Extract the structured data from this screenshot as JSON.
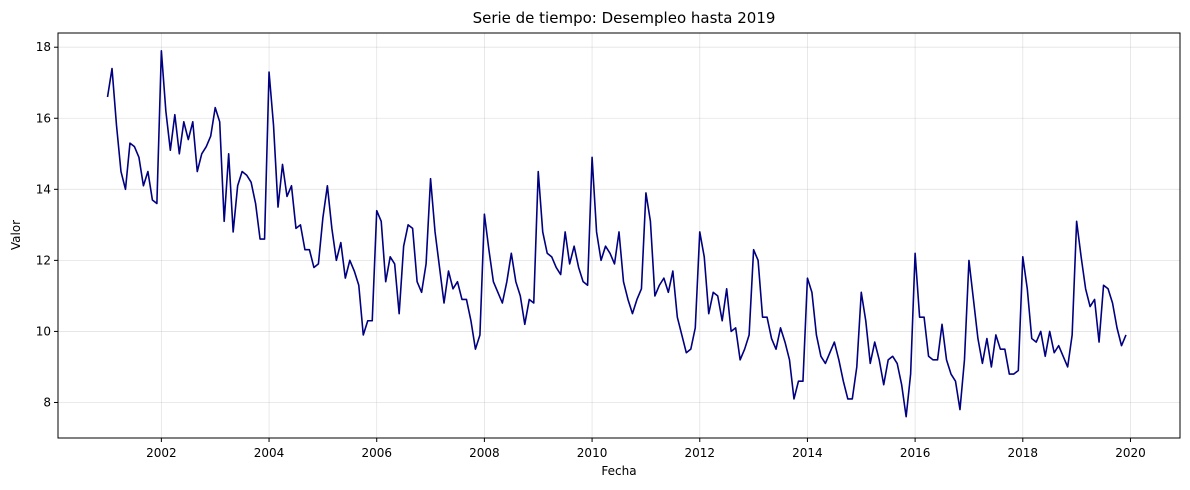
{
  "chart_data": {
    "type": "line",
    "title": "Serie de tiempo: Desempleo hasta 2019",
    "xlabel": "Fecha",
    "ylabel": "Valor",
    "xlim": [
      2000.08,
      2020.92
    ],
    "ylim": [
      7.0,
      18.4
    ],
    "x_ticks": [
      2002,
      2004,
      2006,
      2008,
      2010,
      2012,
      2014,
      2016,
      2018,
      2020
    ],
    "x_tick_labels": [
      "2002",
      "2004",
      "2006",
      "2008",
      "2010",
      "2012",
      "2014",
      "2016",
      "2018",
      "2020"
    ],
    "y_ticks": [
      8,
      10,
      12,
      14,
      16,
      18
    ],
    "y_tick_labels": [
      "8",
      "10",
      "12",
      "14",
      "16",
      "18"
    ],
    "grid": true,
    "series": [
      {
        "color": "#000080",
        "start": "2001-01",
        "frequency": "monthly",
        "x": [
          "2001-01",
          "2001-02",
          "2001-03",
          "2001-04",
          "2001-05",
          "2001-06",
          "2001-07",
          "2001-08",
          "2001-09",
          "2001-10",
          "2001-11",
          "2001-12",
          "2002-01",
          "2002-02",
          "2002-03",
          "2002-04",
          "2002-05",
          "2002-06",
          "2002-07",
          "2002-08",
          "2002-09",
          "2002-10",
          "2002-11",
          "2002-12",
          "2003-01",
          "2003-02",
          "2003-03",
          "2003-04",
          "2003-05",
          "2003-06",
          "2003-07",
          "2003-08",
          "2003-09",
          "2003-10",
          "2003-11",
          "2003-12",
          "2004-01",
          "2004-02",
          "2004-03",
          "2004-04",
          "2004-05",
          "2004-06",
          "2004-07",
          "2004-08",
          "2004-09",
          "2004-10",
          "2004-11",
          "2004-12",
          "2005-01",
          "2005-02",
          "2005-03",
          "2005-04",
          "2005-05",
          "2005-06",
          "2005-07",
          "2005-08",
          "2005-09",
          "2005-10",
          "2005-11",
          "2005-12",
          "2006-01",
          "2006-02",
          "2006-03",
          "2006-04",
          "2006-05",
          "2006-06",
          "2006-07",
          "2006-08",
          "2006-09",
          "2006-10",
          "2006-11",
          "2006-12",
          "2007-01",
          "2007-02",
          "2007-03",
          "2007-04",
          "2007-05",
          "2007-06",
          "2007-07",
          "2007-08",
          "2007-09",
          "2007-10",
          "2007-11",
          "2007-12",
          "2008-01",
          "2008-02",
          "2008-03",
          "2008-04",
          "2008-05",
          "2008-06",
          "2008-07",
          "2008-08",
          "2008-09",
          "2008-10",
          "2008-11",
          "2008-12",
          "2009-01",
          "2009-02",
          "2009-03",
          "2009-04",
          "2009-05",
          "2009-06",
          "2009-07",
          "2009-08",
          "2009-09",
          "2009-10",
          "2009-11",
          "2009-12",
          "2010-01",
          "2010-02",
          "2010-03",
          "2010-04",
          "2010-05",
          "2010-06",
          "2010-07",
          "2010-08",
          "2010-09",
          "2010-10",
          "2010-11",
          "2010-12",
          "2011-01",
          "2011-02",
          "2011-03",
          "2011-04",
          "2011-05",
          "2011-06",
          "2011-07",
          "2011-08",
          "2011-09",
          "2011-10",
          "2011-11",
          "2011-12",
          "2012-01",
          "2012-02",
          "2012-03",
          "2012-04",
          "2012-05",
          "2012-06",
          "2012-07",
          "2012-08",
          "2012-09",
          "2012-10",
          "2012-11",
          "2012-12",
          "2013-01",
          "2013-02",
          "2013-03",
          "2013-04",
          "2013-05",
          "2013-06",
          "2013-07",
          "2013-08",
          "2013-09",
          "2013-10",
          "2013-11",
          "2013-12",
          "2014-01",
          "2014-02",
          "2014-03",
          "2014-04",
          "2014-05",
          "2014-06",
          "2014-07",
          "2014-08",
          "2014-09",
          "2014-10",
          "2014-11",
          "2014-12",
          "2015-01",
          "2015-02",
          "2015-03",
          "2015-04",
          "2015-05",
          "2015-06",
          "2015-07",
          "2015-08",
          "2015-09",
          "2015-10",
          "2015-11",
          "2015-12",
          "2016-01",
          "2016-02",
          "2016-03",
          "2016-04",
          "2016-05",
          "2016-06",
          "2016-07",
          "2016-08",
          "2016-09",
          "2016-10",
          "2016-11",
          "2016-12",
          "2017-01",
          "2017-02",
          "2017-03",
          "2017-04",
          "2017-05",
          "2017-06",
          "2017-07",
          "2017-08",
          "2017-09",
          "2017-10",
          "2017-11",
          "2017-12",
          "2018-01",
          "2018-02",
          "2018-03",
          "2018-04",
          "2018-05",
          "2018-06",
          "2018-07",
          "2018-08",
          "2018-09",
          "2018-10",
          "2018-11",
          "2018-12",
          "2019-01",
          "2019-02",
          "2019-03",
          "2019-04",
          "2019-05",
          "2019-06",
          "2019-07",
          "2019-08",
          "2019-09",
          "2019-10",
          "2019-11",
          "2019-12"
        ],
        "values": [
          16.6,
          17.4,
          15.8,
          14.5,
          14.0,
          15.3,
          15.2,
          14.9,
          14.1,
          14.5,
          13.7,
          13.6,
          17.9,
          16.2,
          15.1,
          16.1,
          15.0,
          15.9,
          15.4,
          15.9,
          14.5,
          15.0,
          15.2,
          15.5,
          16.3,
          15.9,
          13.1,
          15.0,
          12.8,
          14.1,
          14.5,
          14.4,
          14.2,
          13.6,
          12.6,
          12.6,
          17.3,
          15.8,
          13.5,
          14.7,
          13.8,
          14.1,
          12.9,
          13.0,
          12.3,
          12.3,
          11.8,
          11.9,
          13.2,
          14.1,
          12.9,
          12.0,
          12.5,
          11.5,
          12.0,
          11.7,
          11.3,
          9.9,
          10.3,
          10.3,
          13.4,
          13.1,
          11.4,
          12.1,
          11.9,
          10.5,
          12.4,
          13.0,
          12.9,
          11.4,
          11.1,
          11.9,
          14.3,
          12.8,
          11.8,
          10.8,
          11.7,
          11.2,
          11.4,
          10.9,
          10.9,
          10.3,
          9.5,
          9.9,
          13.3,
          12.3,
          11.4,
          11.1,
          10.8,
          11.4,
          12.2,
          11.4,
          11.0,
          10.2,
          10.9,
          10.8,
          14.5,
          12.8,
          12.2,
          12.1,
          11.8,
          11.6,
          12.8,
          11.9,
          12.4,
          11.8,
          11.4,
          11.3,
          14.9,
          12.8,
          12.0,
          12.4,
          12.2,
          11.9,
          12.8,
          11.4,
          10.9,
          10.5,
          10.9,
          11.2,
          13.9,
          13.1,
          11.0,
          11.3,
          11.5,
          11.1,
          11.7,
          10.4,
          9.9,
          9.4,
          9.5,
          10.1,
          12.8,
          12.1,
          10.5,
          11.1,
          11.0,
          10.3,
          11.2,
          10.0,
          10.1,
          9.2,
          9.5,
          9.9,
          12.3,
          12.0,
          10.4,
          10.4,
          9.8,
          9.5,
          10.1,
          9.7,
          9.2,
          8.1,
          8.6,
          8.6,
          11.5,
          11.1,
          9.9,
          9.3,
          9.1,
          9.4,
          9.7,
          9.2,
          8.6,
          8.1,
          8.1,
          9.0,
          11.1,
          10.3,
          9.1,
          9.7,
          9.2,
          8.5,
          9.2,
          9.3,
          9.1,
          8.5,
          7.6,
          8.8,
          12.2,
          10.4,
          10.4,
          9.3,
          9.2,
          9.2,
          10.2,
          9.2,
          8.8,
          8.6,
          7.8,
          9.2,
          12.0,
          10.9,
          9.8,
          9.1,
          9.8,
          9.0,
          9.9,
          9.5,
          9.5,
          8.8,
          8.8,
          8.9,
          12.1,
          11.2,
          9.8,
          9.7,
          10.0,
          9.3,
          10.0,
          9.4,
          9.6,
          9.3,
          9.0,
          9.9,
          13.1,
          12.1,
          11.2,
          10.7,
          10.9,
          9.7,
          11.3,
          11.2,
          10.8,
          10.1,
          9.6,
          9.9
        ]
      }
    ]
  }
}
